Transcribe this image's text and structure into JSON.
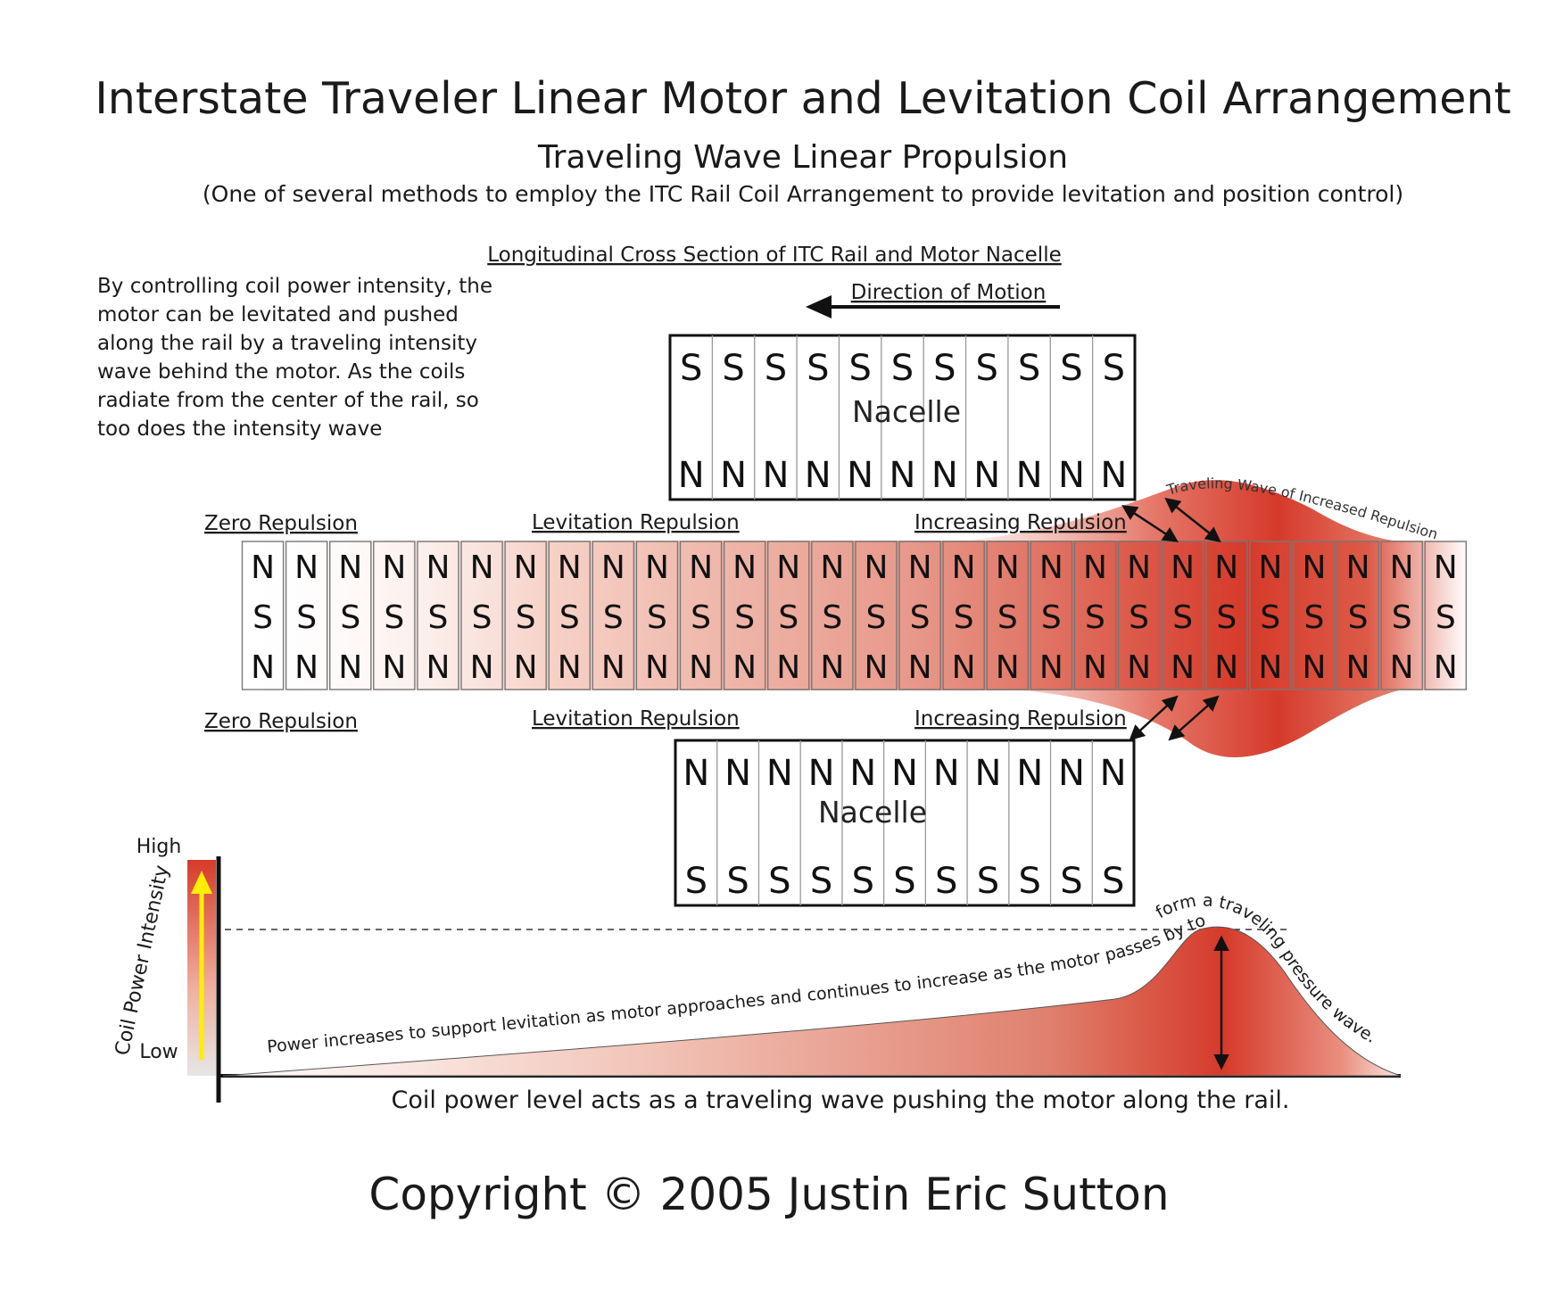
{
  "header": {
    "title": "Interstate Traveler Linear Motor and Levitation Coil Arrangement",
    "subtitle": "Traveling Wave Linear Propulsion",
    "note": "(One of several methods to employ the ITC Rail Coil Arrangement to provide levitation and position control)"
  },
  "section_title": "Longitudinal Cross Section of ITC Rail and Motor Nacelle",
  "direction_label": "Direction of Motion",
  "description": [
    "By controlling coil power intensity, the",
    "motor can be levitated and pushed",
    "along the rail by a traveling intensity",
    "wave behind the motor.  As the coils",
    "radiate from the center of the rail, so",
    "too does the intensity wave"
  ],
  "upper_nacelle": {
    "label": "Nacelle",
    "top_poles": [
      "S",
      "S",
      "S",
      "S",
      "S",
      "S",
      "S",
      "S",
      "S",
      "S",
      "S"
    ],
    "bottom_poles": [
      "N",
      "N",
      "N",
      "N",
      "N",
      "N",
      "N",
      "N",
      "N",
      "N",
      "N"
    ]
  },
  "lower_nacelle": {
    "label": "Nacelle",
    "top_poles": [
      "N",
      "N",
      "N",
      "N",
      "N",
      "N",
      "N",
      "N",
      "N",
      "N",
      "N"
    ],
    "bottom_poles": [
      "S",
      "S",
      "S",
      "S",
      "S",
      "S",
      "S",
      "S",
      "S",
      "S",
      "S"
    ]
  },
  "rail": {
    "coil_count": 28,
    "rows": [
      "N",
      "S",
      "N"
    ],
    "coil_intensity": [
      0,
      0,
      0,
      0,
      0.05,
      0.1,
      0.15,
      0.2,
      0.28,
      0.32,
      0.36,
      0.4,
      0.44,
      0.48,
      0.52,
      0.56,
      0.6,
      0.64,
      0.7,
      0.76,
      0.82,
      0.9,
      0.95,
      0.88,
      0.8,
      0.7,
      0.55,
      0
    ]
  },
  "zone_labels": {
    "upper": [
      "Zero Repulsion",
      "Levitation Repulsion",
      "Increasing Repulsion"
    ],
    "lower": [
      "Zero Repulsion",
      "Levitation Repulsion",
      "Increasing Repulsion"
    ]
  },
  "wave_label": "Traveling Wave of Increased Repulsion",
  "power_chart": {
    "axis_title": "Coil Power Intensity",
    "high_label": "High",
    "low_label": "Low",
    "curve_text_1": "Power increases to support levitation as motor approaches and continues to increase as the motor passes by to",
    "curve_text_2": "form a traveling pressure wave.",
    "caption": "Coil power level acts as a traveling wave pushing the motor along the rail."
  },
  "copyright": "Copyright ©  2005  Justin Eric Sutton",
  "colors": {
    "wave_red": "#d63a2a",
    "arrow_yellow": "#ffee00",
    "line": "#111111"
  }
}
